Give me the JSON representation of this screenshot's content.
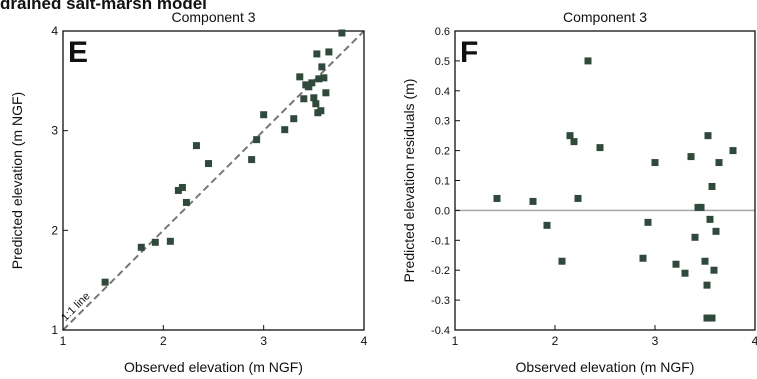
{
  "figure": {
    "banner_text": "drained salt-marsh model",
    "colors": {
      "marker": "#2f4a3b",
      "refline": "#777777",
      "zeroline": "#aaaaaa",
      "axis": "#111111"
    }
  },
  "chart_data": [
    {
      "type": "scatter",
      "panel_letter": "E",
      "title": "Component 3",
      "xlabel": "Observed elevation (m NGF)",
      "ylabel": "Predicted elevation (m NGF)",
      "xlim": [
        1,
        4
      ],
      "ylim": [
        1,
        4
      ],
      "x_ticks": [
        1,
        2,
        3,
        4
      ],
      "y_ticks": [
        1,
        2,
        3,
        4
      ],
      "grid": false,
      "reference_line": {
        "label": "1:1 line",
        "from": [
          1,
          1
        ],
        "to": [
          4,
          4
        ],
        "style": "dashed"
      },
      "points": [
        [
          1.42,
          1.48
        ],
        [
          1.78,
          1.83
        ],
        [
          1.92,
          1.88
        ],
        [
          2.07,
          1.89
        ],
        [
          2.15,
          2.4
        ],
        [
          2.19,
          2.43
        ],
        [
          2.23,
          2.28
        ],
        [
          2.33,
          2.85
        ],
        [
          2.45,
          2.67
        ],
        [
          2.88,
          2.71
        ],
        [
          2.93,
          2.91
        ],
        [
          3.0,
          3.16
        ],
        [
          3.21,
          3.01
        ],
        [
          3.3,
          3.12
        ],
        [
          3.36,
          3.54
        ],
        [
          3.4,
          3.32
        ],
        [
          3.42,
          3.46
        ],
        [
          3.45,
          3.44
        ],
        [
          3.48,
          3.48
        ],
        [
          3.5,
          3.33
        ],
        [
          3.52,
          3.27
        ],
        [
          3.53,
          3.77
        ],
        [
          3.54,
          3.18
        ],
        [
          3.55,
          3.52
        ],
        [
          3.57,
          3.2
        ],
        [
          3.58,
          3.64
        ],
        [
          3.6,
          3.53
        ],
        [
          3.62,
          3.38
        ],
        [
          3.65,
          3.79
        ],
        [
          3.78,
          3.98
        ]
      ]
    },
    {
      "type": "scatter",
      "panel_letter": "F",
      "title": "Component 3",
      "xlabel": "Observed elevation (m NGF)",
      "ylabel": "Predicted elevation residuals (m)",
      "xlim": [
        1,
        4
      ],
      "ylim": [
        -0.4,
        0.6
      ],
      "x_ticks": [
        1,
        2,
        3,
        4
      ],
      "y_ticks": [
        -0.4,
        -0.3,
        -0.2,
        -0.1,
        0.0,
        0.1,
        0.2,
        0.3,
        0.4,
        0.5,
        0.6
      ],
      "y_tick_labels": [
        "-0.4",
        "-0.3",
        "-0.2",
        "-0.1",
        "0.0",
        "0.1",
        "0.2",
        "0.3",
        "0.4",
        "0.5",
        "0.6"
      ],
      "grid": false,
      "zero_line": 0,
      "points": [
        [
          1.42,
          0.04
        ],
        [
          1.78,
          0.03
        ],
        [
          1.92,
          -0.05
        ],
        [
          2.07,
          -0.17
        ],
        [
          2.15,
          0.25
        ],
        [
          2.19,
          0.23
        ],
        [
          2.23,
          0.04
        ],
        [
          2.33,
          0.5
        ],
        [
          2.45,
          0.21
        ],
        [
          2.88,
          -0.16
        ],
        [
          2.93,
          -0.04
        ],
        [
          3.0,
          0.16
        ],
        [
          3.21,
          -0.18
        ],
        [
          3.3,
          -0.21
        ],
        [
          3.36,
          0.18
        ],
        [
          3.4,
          -0.09
        ],
        [
          3.43,
          0.01
        ],
        [
          3.46,
          0.01
        ],
        [
          3.5,
          -0.17
        ],
        [
          3.52,
          -0.25
        ],
        [
          3.53,
          0.25
        ],
        [
          3.54,
          -0.36
        ],
        [
          3.55,
          -0.03
        ],
        [
          3.57,
          0.08
        ],
        [
          3.57,
          -0.36
        ],
        [
          3.59,
          -0.2
        ],
        [
          3.61,
          -0.07
        ],
        [
          3.64,
          0.16
        ],
        [
          3.78,
          0.2
        ],
        [
          3.52,
          -0.36
        ]
      ]
    }
  ]
}
